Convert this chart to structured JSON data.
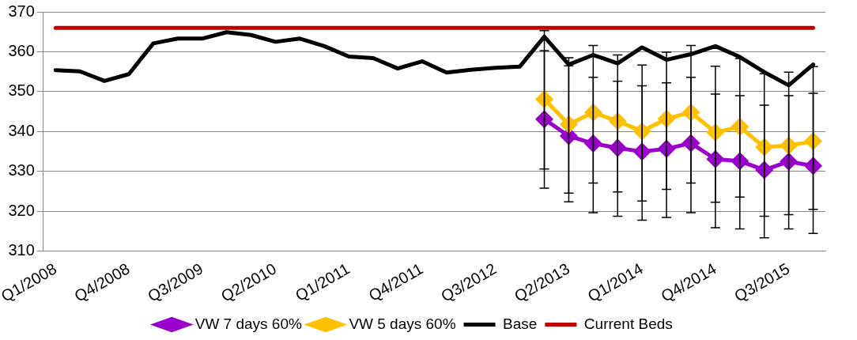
{
  "chart_data": {
    "type": "line",
    "categories": [
      "Q1/2008",
      null,
      null,
      "Q4/2008",
      null,
      null,
      "Q3/2009",
      null,
      null,
      "Q2/2010",
      null,
      null,
      "Q1/2011",
      null,
      null,
      "Q4/2011",
      null,
      null,
      "Q3/2012",
      null,
      null,
      "Q2/2013",
      null,
      null,
      "Q1/2014",
      null,
      null,
      "Q4/2014",
      null,
      null,
      "Q3/2015",
      null
    ],
    "series": [
      {
        "name": "VW 7 days 60%",
        "color": "#9900cc",
        "marker": "diamond",
        "values": [
          null,
          null,
          null,
          null,
          null,
          null,
          null,
          null,
          null,
          null,
          null,
          null,
          null,
          null,
          null,
          null,
          null,
          null,
          null,
          null,
          343.1,
          338.9,
          337.0,
          335.9,
          335.0,
          335.7,
          337.1,
          333.1,
          332.6,
          330.4,
          332.5,
          331.4
        ],
        "errors": [
          null,
          null,
          null,
          null,
          null,
          null,
          null,
          null,
          null,
          null,
          null,
          null,
          null,
          null,
          null,
          null,
          null,
          null,
          null,
          null,
          [
            325.8,
            365.3
          ],
          [
            322.4,
            358.5
          ],
          [
            319.7,
            361.6
          ],
          [
            318.8,
            359.2
          ],
          [
            317.8,
            356.7
          ],
          [
            318.5,
            359.9
          ],
          [
            319.7,
            361.6
          ],
          [
            315.9,
            356.4
          ],
          [
            315.6,
            358.3
          ],
          [
            313.4,
            354.5
          ],
          [
            315.6,
            354.9
          ],
          [
            314.5,
            356.3
          ]
        ]
      },
      {
        "name": "VW 5 days 60%",
        "color": "#ffc000",
        "marker": "diamond",
        "values": [
          null,
          null,
          null,
          null,
          null,
          null,
          null,
          null,
          null,
          null,
          null,
          null,
          null,
          null,
          null,
          null,
          null,
          null,
          null,
          null,
          348.1,
          341.8,
          344.8,
          342.6,
          340.1,
          343.2,
          344.8,
          339.8,
          341.2,
          336.1,
          336.5,
          337.6
        ],
        "errors": [
          null,
          null,
          null,
          null,
          null,
          null,
          null,
          null,
          null,
          null,
          null,
          null,
          null,
          null,
          null,
          null,
          null,
          null,
          null,
          null,
          [
            330.6,
            360.3
          ],
          [
            324.6,
            356.5
          ],
          [
            327.1,
            353.6
          ],
          [
            324.9,
            352.6
          ],
          [
            322.6,
            351.5
          ],
          [
            325.5,
            352.2
          ],
          [
            327.1,
            353.6
          ],
          [
            322.3,
            349.4
          ],
          [
            323.6,
            349.0
          ],
          [
            318.8,
            346.6
          ],
          [
            319.2,
            349.0
          ],
          [
            320.5,
            349.6
          ]
        ]
      },
      {
        "name": "Base",
        "color": "#000000",
        "marker": "none",
        "values": [
          355.4,
          355.1,
          352.7,
          354.4,
          362.1,
          363.3,
          363.3,
          364.9,
          364.2,
          362.5,
          363.3,
          361.4,
          358.8,
          358.4,
          355.8,
          357.6,
          354.8,
          355.5,
          356.0,
          356.3,
          363.8,
          356.8,
          359.2,
          357.1,
          361.1,
          358.0,
          359.4,
          361.4,
          358.7,
          354.9,
          351.6,
          356.8
        ]
      },
      {
        "name": "Current Beds",
        "color": "#c00000",
        "marker": "none",
        "values": [
          366,
          366,
          366,
          366,
          366,
          366,
          366,
          366,
          366,
          366,
          366,
          366,
          366,
          366,
          366,
          366,
          366,
          366,
          366,
          366,
          366,
          366,
          366,
          366,
          366,
          366,
          366,
          366,
          366,
          366,
          366,
          366
        ]
      }
    ],
    "ylim": [
      310,
      370
    ],
    "yticks": [
      310,
      320,
      330,
      340,
      350,
      360,
      370
    ],
    "grid": "y",
    "legend": "bottom"
  }
}
